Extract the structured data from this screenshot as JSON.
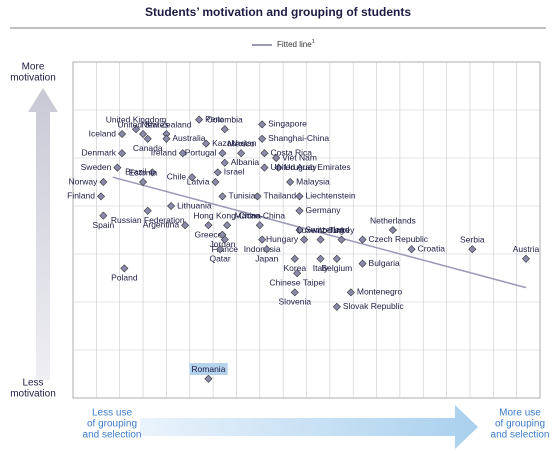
{
  "chart_data": {
    "type": "scatter",
    "title": "Students’ motivation and grouping of students",
    "legend": {
      "name": "Fitted line",
      "note": "1",
      "color": "#9a9ab8"
    },
    "y_axis_top": [
      "More",
      "motivation"
    ],
    "y_axis_bottom": [
      "Less",
      "motivation"
    ],
    "x_axis_left": [
      "Less use",
      "of grouping",
      "and selection"
    ],
    "x_axis_right": [
      "More use",
      "of grouping",
      "and selection"
    ],
    "highlight": "Romania",
    "xlim": [
      0,
      20
    ],
    "ylim": [
      0,
      7
    ],
    "grid": true,
    "marker_color": "#8a8aaa",
    "fitted_x": [
      1.7,
      19.4
    ],
    "fitted_y": [
      4.6,
      2.3
    ],
    "points": {
      "names": [
        "Iceland",
        "United Kingdom",
        "United States",
        "Canada",
        "New Zealand",
        "Australia",
        "Peru",
        "Colombia",
        "Singapore",
        "Shanghai-China",
        "Kazakhstan",
        "Denmark",
        "Ireland",
        "Portugal",
        "Mexico",
        "Costa Rica",
        "Viet Nam",
        "Albania",
        "Brazil",
        "Israel",
        "Uruguay",
        "Sweden",
        "Norway",
        "Chile",
        "Latvia",
        "United Arab Emirates",
        "Estonia",
        "Malaysia",
        "Tunisia",
        "Thailand",
        "Liechtenstein",
        "Finland",
        "Lithuania",
        "Germany",
        "Russian Federation",
        "Spain",
        "Hong Kong-China",
        "Argentina",
        "Switzerland",
        "Greece",
        "Macao-China",
        "Netherlands",
        "Jordan",
        "Hungary",
        "Czech Republic",
        "Serbia",
        "Austria",
        "Indonesia",
        "Luxembourg",
        "Croatia",
        "France",
        "Qatar",
        "Japan",
        "Korea",
        "Italy",
        "Turkey",
        "Belgium",
        "Bulgaria",
        "Poland",
        "Chinese Taipei",
        "Montenegro",
        "Slovenia",
        "Slovak Republic",
        "Romania"
      ],
      "x": [
        2.1,
        2.7,
        3.0,
        3.2,
        4.0,
        4.0,
        5.4,
        6.5,
        8.1,
        8.1,
        5.7,
        2.1,
        4.7,
        6.4,
        7.2,
        8.2,
        8.7,
        6.5,
        3.4,
        6.2,
        8.8,
        1.9,
        1.3,
        5.1,
        6.1,
        8.2,
        3.0,
        9.3,
        6.4,
        7.9,
        9.7,
        1.2,
        4.2,
        9.7,
        3.2,
        1.3,
        6.6,
        4.8,
        9.7,
        5.8,
        8.0,
        13.7,
        6.4,
        9.9,
        12.4,
        17.1,
        19.4,
        8.1,
        10.6,
        14.5,
        6.5,
        6.3,
        8.3,
        9.5,
        10.6,
        11.5,
        11.3,
        12.4,
        2.2,
        9.6,
        11.9,
        9.5,
        11.3,
        5.8
      ],
      "y": [
        5.5,
        5.6,
        5.5,
        5.4,
        5.5,
        5.4,
        5.8,
        5.6,
        5.7,
        5.4,
        5.3,
        5.1,
        5.1,
        5.1,
        5.1,
        5.1,
        5.0,
        4.9,
        4.7,
        4.7,
        4.8,
        4.8,
        4.5,
        4.6,
        4.5,
        4.8,
        4.5,
        4.5,
        4.2,
        4.2,
        4.2,
        4.2,
        4.0,
        3.9,
        3.9,
        3.8,
        3.6,
        3.6,
        3.5,
        3.6,
        3.6,
        3.5,
        3.4,
        3.3,
        3.3,
        3.1,
        2.9,
        3.3,
        3.3,
        3.1,
        3.3,
        3.1,
        3.1,
        2.9,
        2.9,
        3.3,
        2.9,
        2.8,
        2.7,
        2.6,
        2.2,
        2.2,
        1.9,
        0.4
      ]
    }
  }
}
